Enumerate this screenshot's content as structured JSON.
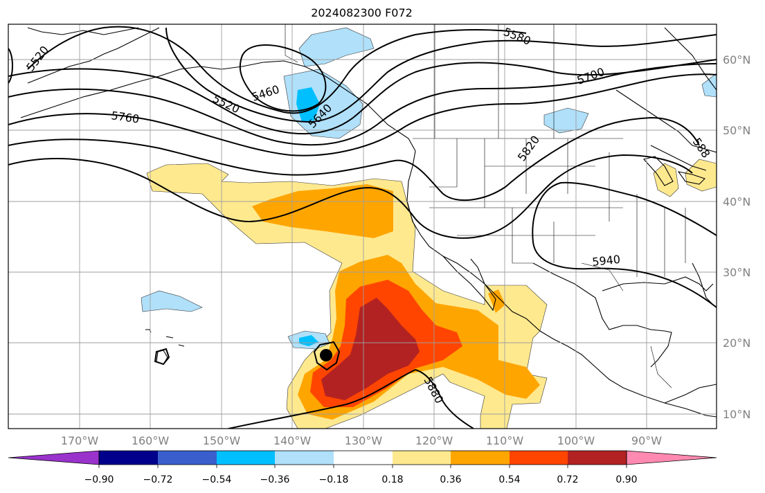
{
  "title": "2024082300 F072",
  "lon_labels": [
    "170°W",
    "160°W",
    "150°W",
    "140°W",
    "130°W",
    "120°W",
    "110°W",
    "100°W",
    "90°W"
  ],
  "lat_labels": [
    "60°N",
    "50°N",
    "40°N",
    "30°N",
    "20°N",
    "10°N"
  ],
  "contour_labels": [
    "5520",
    "5580",
    "5460",
    "5520",
    "5700",
    "5640",
    "5760",
    "5820",
    "588",
    "5940",
    "5880"
  ],
  "colorbar": {
    "ticks": [
      "−0.90",
      "−0.72",
      "−0.54",
      "−0.36",
      "−0.18",
      "0.18",
      "0.36",
      "0.54",
      "0.72",
      "0.90"
    ],
    "colors": [
      "#9933cc",
      "#00008b",
      "#3a5fcd",
      "#00bfff",
      "#b0e0fa",
      "#ffffff",
      "#ffe98f",
      "#ffa500",
      "#ff4500",
      "#b22222",
      "#ff89b1"
    ]
  },
  "shading_colors": {
    "light_yellow": "#ffe98f",
    "orange": "#ffa500",
    "red_orange": "#ff4500",
    "dark_red": "#b22222",
    "light_blue": "#b0e0fa",
    "blue": "#00bfff"
  },
  "axis_label_color": "#808080"
}
